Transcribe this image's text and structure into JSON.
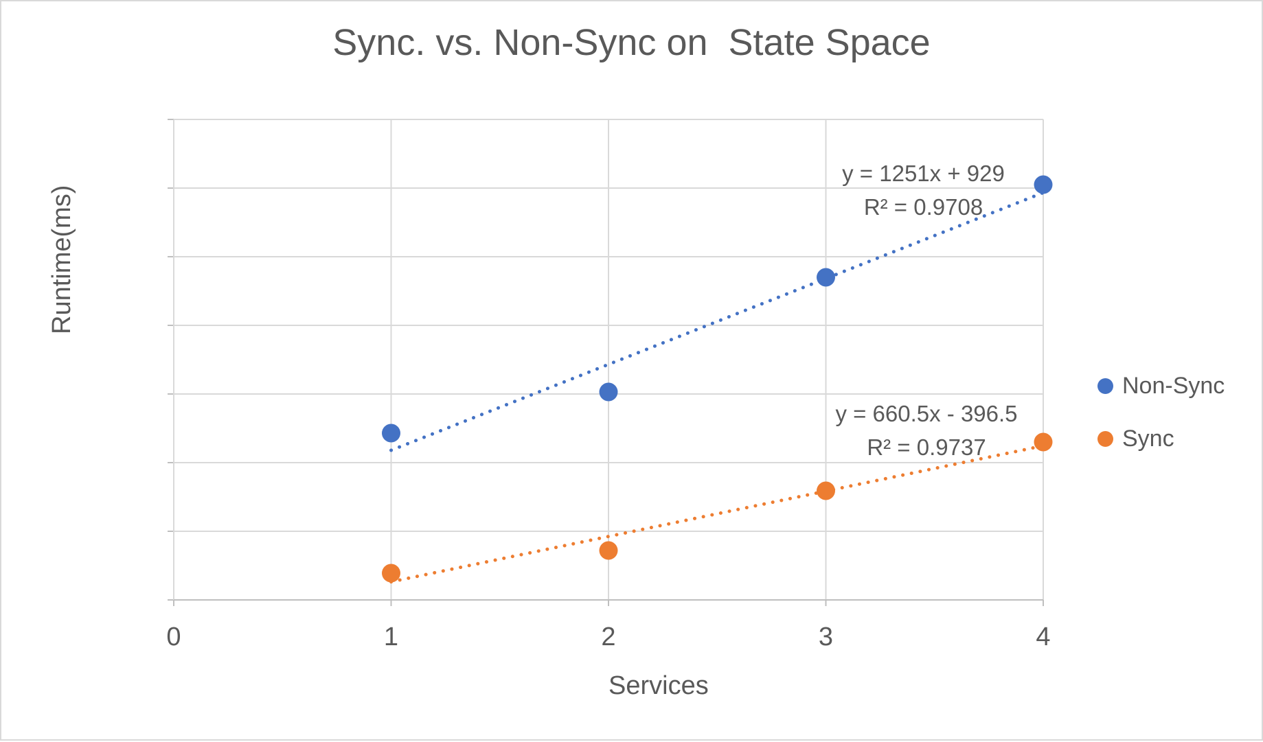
{
  "chart_data": {
    "type": "scatter",
    "title": "Sync. vs. Non-Sync on  State Space",
    "xlabel": "Services",
    "ylabel": "Runtime(ms)",
    "xlim": [
      0,
      4
    ],
    "ylim": [
      0,
      7000
    ],
    "x_ticks": [
      "0",
      "1",
      "2",
      "3",
      "4"
    ],
    "y_ticks": [
      "0",
      "1000",
      "2000",
      "3000",
      "4000",
      "5000",
      "6000",
      "7000"
    ],
    "grid": true,
    "legend_position": "right",
    "series": [
      {
        "name": "Non-Sync",
        "color": "#4472C4",
        "x": [
          1,
          2,
          3,
          4
        ],
        "y": [
          2430,
          3030,
          4700,
          6050
        ],
        "trendline": {
          "style": "dotted",
          "slope": 1251,
          "intercept": 929,
          "x_range": [
            1,
            4
          ],
          "equation": "y = 1251x + 929",
          "r_squared": "R² = 0.9708"
        }
      },
      {
        "name": "Sync",
        "color": "#ED7D31",
        "x": [
          1,
          2,
          3,
          4
        ],
        "y": [
          390,
          720,
          1590,
          2300
        ],
        "trendline": {
          "style": "dotted",
          "slope": 660.5,
          "intercept": -396.5,
          "x_range": [
            1,
            4
          ],
          "equation": "y = 660.5x - 396.5",
          "r_squared": "R² = 0.9737"
        }
      }
    ]
  },
  "colors": {
    "text": "#595959",
    "gridline": "#D9D9D9",
    "axis_line": "#BFBFBF",
    "frame_border": "#D9D9D9",
    "non_sync": "#4472C4",
    "sync": "#ED7D31"
  }
}
